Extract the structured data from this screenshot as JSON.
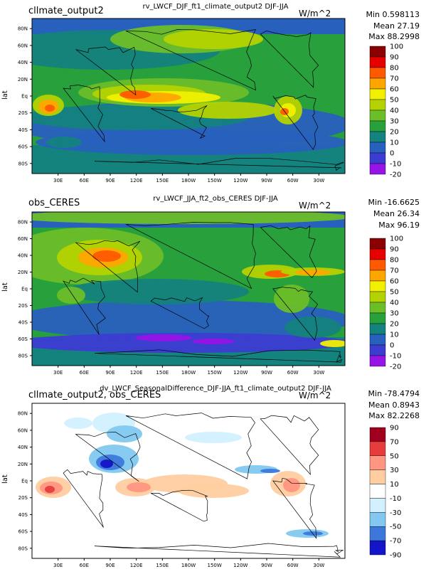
{
  "chart_data": [
    {
      "type": "heatmap",
      "case_label": "cllmate_output2",
      "title": "rv_LWCF_DJF_ft1_climate_output2  DJF-JJA",
      "units": "W/m^2",
      "stats": {
        "min": "Min 0.598113",
        "mean": "Mean 27.19",
        "max": "Max 88.2998"
      },
      "ylabel": "lat",
      "x_ticks": [
        "30E",
        "60E",
        "90E",
        "120E",
        "150E",
        "180W",
        "150W",
        "120W",
        "90W",
        "60W",
        "30W"
      ],
      "y_ticks": [
        "80N",
        "60N",
        "40N",
        "20N",
        "Eq",
        "20S",
        "40S",
        "60S",
        "80S"
      ],
      "colorbar": {
        "labels": [
          "100",
          "90",
          "80",
          "70",
          "60",
          "50",
          "40",
          "30",
          "20",
          "10",
          "0",
          "-10",
          "-20"
        ],
        "colors": [
          "#8b0000",
          "#e60000",
          "#ff5a00",
          "#ffa500",
          "#f0f000",
          "#b4d200",
          "#6cbe28",
          "#28a03c",
          "#14827d",
          "#2860be",
          "#3c3cd2",
          "#9614e6"
        ]
      }
    },
    {
      "type": "heatmap",
      "case_label": "obs_CERES",
      "title": "rv_LWCF_JJA_ft2_obs_CERES  DJF-JJA",
      "units": "W/m^2",
      "stats": {
        "min": "Min -16.6625",
        "mean": "Mean 26.34",
        "max": "Max 96.19"
      },
      "ylabel": "lat",
      "x_ticks": [
        "30E",
        "60E",
        "90E",
        "120E",
        "150E",
        "180W",
        "150W",
        "120W",
        "90W",
        "60W",
        "30W"
      ],
      "y_ticks": [
        "80N",
        "60N",
        "40N",
        "20N",
        "Eq",
        "20S",
        "40S",
        "60S",
        "80S"
      ],
      "colorbar": {
        "labels": [
          "100",
          "90",
          "80",
          "70",
          "60",
          "50",
          "40",
          "30",
          "20",
          "10",
          "0",
          "-10",
          "-20"
        ],
        "colors": [
          "#8b0000",
          "#e60000",
          "#ff5a00",
          "#ffa500",
          "#f0f000",
          "#b4d200",
          "#6cbe28",
          "#28a03c",
          "#14827d",
          "#2860be",
          "#3c3cd2",
          "#9614e6"
        ]
      }
    },
    {
      "type": "heatmap",
      "case_label": "cllmate_output2, obs_CERES",
      "title": "dv_LWCF_SeasonalDifference_DJF-JJA_ft1_climate_output2  DJF-JJA",
      "units": "W/m^2",
      "stats": {
        "min": "Min -78.4794",
        "mean": "Mean 0.8943",
        "max": "Max 82.2268"
      },
      "ylabel": "lat",
      "x_ticks": [
        "30E",
        "60E",
        "90E",
        "120E",
        "150E",
        "180W",
        "150W",
        "120W",
        "90W",
        "60W",
        "30W"
      ],
      "y_ticks": [
        "80N",
        "60N",
        "40N",
        "20N",
        "Eq",
        "20S",
        "40S",
        "60S",
        "80S"
      ],
      "colorbar": {
        "labels": [
          "90",
          "70",
          "50",
          "30",
          "10",
          "-10",
          "-30",
          "-50",
          "-70",
          "-90"
        ],
        "colors": [
          "#a0001e",
          "#e63c3c",
          "#ff9682",
          "#ffcda0",
          "#ffffff",
          "#d2f0ff",
          "#82c8f0",
          "#3c78dc",
          "#1414c8"
        ]
      }
    }
  ]
}
